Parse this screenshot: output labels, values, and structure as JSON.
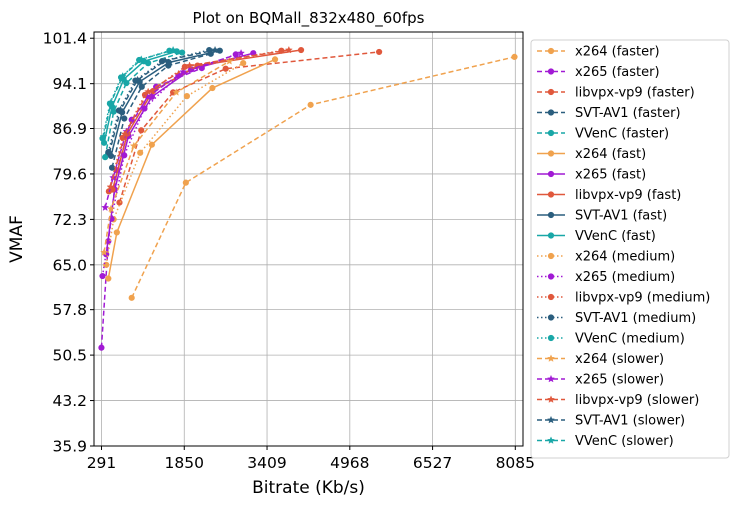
{
  "chart_data": {
    "type": "line",
    "title": "Plot on BQMall_832x480_60fps",
    "xlabel": "Bitrate (Kb/s)",
    "ylabel": "VMAF",
    "xlim": [
      150,
      8230
    ],
    "ylim": [
      35.9,
      102.4
    ],
    "x_ticks": [
      291,
      1850,
      3409,
      4968,
      6527,
      8085
    ],
    "y_ticks": [
      35.9,
      43.2,
      50.5,
      57.8,
      65.0,
      72.3,
      79.6,
      86.9,
      94.1,
      101.4
    ],
    "grid": true,
    "legend_position": "right, outside plot area",
    "series": [
      {
        "name": "x264 (faster)",
        "color": "#f0a24e",
        "dash": "dashed",
        "marker": "circle",
        "x": [
          860,
          1880,
          4230,
          8070
        ],
        "y": [
          59.7,
          78.2,
          90.7,
          98.4
        ]
      },
      {
        "name": "x265 (faster)",
        "color": "#a11ad4",
        "dash": "dashed",
        "marker": "circle",
        "x": [
          290,
          420,
          580,
          860,
          1320,
          2180
        ],
        "y": [
          51.7,
          68.8,
          80.2,
          88.3,
          93.6,
          96.6
        ]
      },
      {
        "name": "libvpx-vp9 (faster)",
        "color": "#e0583c",
        "dash": "dashed",
        "marker": "circle",
        "x": [
          630,
          1040,
          1640,
          2630,
          5520
        ],
        "y": [
          75.0,
          86.6,
          92.7,
          96.5,
          99.2
        ]
      },
      {
        "name": "SVT-AV1 (faster)",
        "color": "#2b5e7e",
        "dash": "dashed",
        "marker": "circle",
        "x": [
          490,
          720,
          1050,
          1550,
          2350
        ],
        "y": [
          80.6,
          88.5,
          93.6,
          97.0,
          98.9
        ]
      },
      {
        "name": "VVenC (faster)",
        "color": "#19a7a7",
        "dash": "dashed",
        "marker": "circle",
        "x": [
          360,
          520,
          760,
          1170,
          1810
        ],
        "y": [
          82.3,
          89.6,
          94.2,
          97.4,
          99.1
        ]
      },
      {
        "name": "x264 (fast)",
        "color": "#f0a24e",
        "dash": "solid",
        "marker": "circle",
        "x": [
          420,
          580,
          1240,
          2380,
          3560
        ],
        "y": [
          62.8,
          70.2,
          84.3,
          93.4,
          98.0
        ]
      },
      {
        "name": "x265 (fast)",
        "color": "#a11ad4",
        "dash": "solid",
        "marker": "circle",
        "x": [
          380,
          540,
          800,
          1240,
          1980,
          3150
        ],
        "y": [
          66.7,
          77.1,
          85.7,
          92.0,
          96.4,
          99.0
        ]
      },
      {
        "name": "libvpx-vp9 (fast)",
        "color": "#e0583c",
        "dash": "solid",
        "marker": "circle",
        "x": [
          500,
          780,
          1260,
          2100,
          4050
        ],
        "y": [
          77.1,
          86.1,
          92.9,
          97.0,
          99.5
        ]
      },
      {
        "name": "SVT-AV1 (fast)",
        "color": "#2b5e7e",
        "dash": "solid",
        "marker": "circle",
        "x": [
          470,
          680,
          1010,
          1560,
          2520
        ],
        "y": [
          82.5,
          89.5,
          94.4,
          97.5,
          99.4
        ]
      },
      {
        "name": "VVenC (fast)",
        "color": "#19a7a7",
        "dash": "solid",
        "marker": "circle",
        "x": [
          340,
          490,
          710,
          1090,
          1710
        ],
        "y": [
          84.6,
          90.4,
          94.8,
          97.7,
          99.3
        ]
      },
      {
        "name": "x264 (medium)",
        "color": "#f0a24e",
        "dash": "dotted",
        "marker": "circle",
        "x": [
          380,
          520,
          1020,
          1900,
          2960
        ],
        "y": [
          65.0,
          72.3,
          83.0,
          92.1,
          97.4
        ]
      },
      {
        "name": "x265 (medium)",
        "color": "#a11ad4",
        "dash": "dotted",
        "marker": "circle",
        "x": [
          310,
          480,
          720,
          1100,
          1740,
          2820
        ],
        "y": [
          63.2,
          72.4,
          82.6,
          90.1,
          95.4,
          98.8
        ]
      },
      {
        "name": "libvpx-vp9 (medium)",
        "color": "#e0583c",
        "dash": "dotted",
        "marker": "circle",
        "x": [
          430,
          690,
          1110,
          1860,
          3680
        ],
        "y": [
          76.8,
          85.4,
          92.3,
          96.8,
          99.4
        ]
      },
      {
        "name": "SVT-AV1 (medium)",
        "color": "#2b5e7e",
        "dash": "dotted",
        "marker": "circle",
        "x": [
          420,
          620,
          930,
          1430,
          2320
        ],
        "y": [
          83.1,
          89.8,
          94.6,
          97.7,
          99.5
        ]
      },
      {
        "name": "VVenC (medium)",
        "color": "#19a7a7",
        "dash": "dotted",
        "marker": "circle",
        "x": [
          310,
          450,
          660,
          1000,
          1570
        ],
        "y": [
          85.3,
          90.9,
          95.1,
          97.9,
          99.4
        ]
      },
      {
        "name": "x264 (slower)",
        "color": "#f0a24e",
        "dash": "dashed",
        "marker": "star",
        "x": [
          340,
          470,
          900,
          1700,
          2700
        ],
        "y": [
          67.0,
          74.0,
          84.1,
          92.7,
          97.7
        ]
      },
      {
        "name": "x265 (slower)",
        "color": "#a11ad4",
        "dash": "dashed",
        "marker": "star",
        "x": [
          360,
          510,
          760,
          1160,
          1830,
          2920
        ],
        "y": [
          74.2,
          79.0,
          86.4,
          92.0,
          96.0,
          99.0
        ]
      },
      {
        "name": "libvpx-vp9 (slower)",
        "color": "#e0583c",
        "dash": "dashed",
        "marker": "star",
        "x": [
          460,
          730,
          1170,
          1950,
          3820
        ],
        "y": [
          77.5,
          86.0,
          92.8,
          97.0,
          99.5
        ]
      },
      {
        "name": "SVT-AV1 (slower)",
        "color": "#2b5e7e",
        "dash": "dashed",
        "marker": "star",
        "x": [
          440,
          650,
          970,
          1490,
          2430
        ],
        "y": [
          83.0,
          89.9,
          94.7,
          97.8,
          99.5
        ]
      },
      {
        "name": "VVenC (slower)",
        "color": "#19a7a7",
        "dash": "dashed",
        "marker": "star",
        "x": [
          330,
          470,
          690,
          1040,
          1640
        ],
        "y": [
          85.6,
          91.1,
          95.3,
          98.0,
          99.5
        ]
      }
    ]
  }
}
